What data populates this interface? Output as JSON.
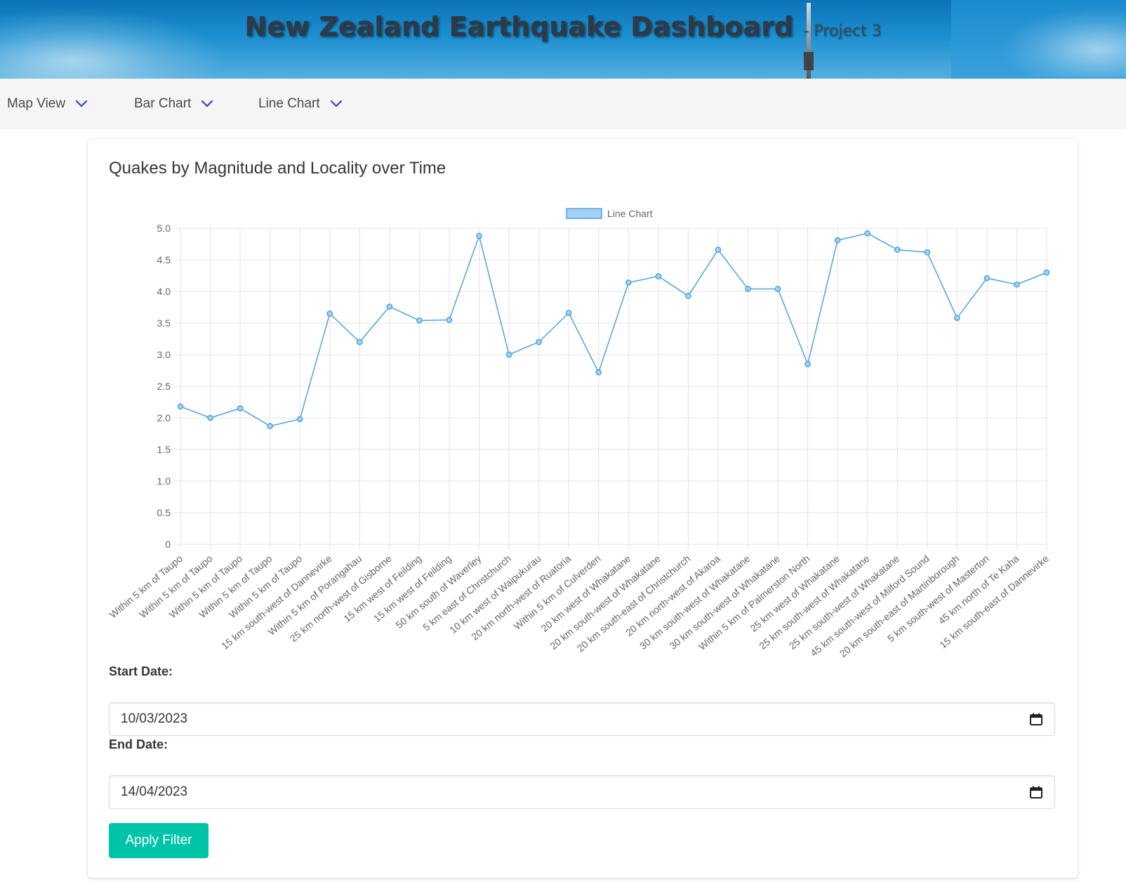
{
  "header": {
    "title": "New Zealand Earthquake Dashboard",
    "subtitle": "- Project 3"
  },
  "nav": {
    "items": [
      {
        "label": "Map View",
        "icon": "chevron-down-icon"
      },
      {
        "label": "Bar Chart",
        "icon": "chevron-down-icon"
      },
      {
        "label": "Line Chart",
        "icon": "chevron-down-icon"
      }
    ]
  },
  "card": {
    "title": "Quakes by Magnitude and Locality over Time"
  },
  "colors": {
    "line": "#4ea3dc",
    "legend_fill": "#a6d2f5",
    "accent_button": "#00c4a7",
    "nav_chevron": "#3e56c4"
  },
  "chart_data": {
    "type": "line",
    "legend": "Line Chart",
    "legend_position": "top-center",
    "grid": true,
    "ylim": [
      0,
      5.0
    ],
    "yticks": [
      "0",
      "0.5",
      "1.0",
      "1.5",
      "2.0",
      "2.5",
      "3.0",
      "3.5",
      "4.0",
      "4.5",
      "5.0"
    ],
    "categories": [
      "Within 5 km of Taupo",
      "Within 5 km of Taupo",
      "Within 5 km of Taupo",
      "Within 5 km of Taupo",
      "Within 5 km of Taupo",
      "15 km south-west of Dannevirke",
      "Within 5 km of Porangahau",
      "25 km north-west of Gisborne",
      "15 km west of Feilding",
      "15 km west of Feilding",
      "50 km south of Waverley",
      "5 km east of Christchurch",
      "10 km west of Waipukurau",
      "20 km north-west of Ruatoria",
      "Within 5 km of Culverden",
      "20 km west of Whakatane",
      "20 km south-west of Whakatane",
      "20 km south-east of Christchurch",
      "20 km north-west of Akaroa",
      "30 km south-west of Whakatane",
      "30 km south-west of Whakatane",
      "Within 5 km of Palmerston North",
      "25 km west of Whakatane",
      "25 km south-west of Whakatane",
      "25 km south-west of Whakatane",
      "45 km south-west of Milford Sound",
      "20 km south-east of Martinborough",
      "5 km south-west of Masterton",
      "45 km north of Te Kaha",
      "15 km south-east of Dannevirke"
    ],
    "series": [
      {
        "name": "Line Chart",
        "values": [
          2.18,
          2.0,
          2.15,
          1.87,
          1.98,
          3.65,
          3.2,
          3.76,
          3.54,
          3.55,
          4.88,
          3.0,
          3.2,
          3.66,
          2.72,
          4.14,
          4.24,
          3.93,
          4.66,
          4.04,
          4.04,
          2.85,
          4.81,
          4.92,
          4.66,
          4.62,
          3.58,
          4.21,
          4.11,
          4.3
        ]
      }
    ]
  },
  "filters": {
    "start_label": "Start Date:",
    "start_value": "10/03/2023",
    "end_label": "End Date:",
    "end_value": "14/04/2023",
    "apply_label": "Apply Filter"
  }
}
